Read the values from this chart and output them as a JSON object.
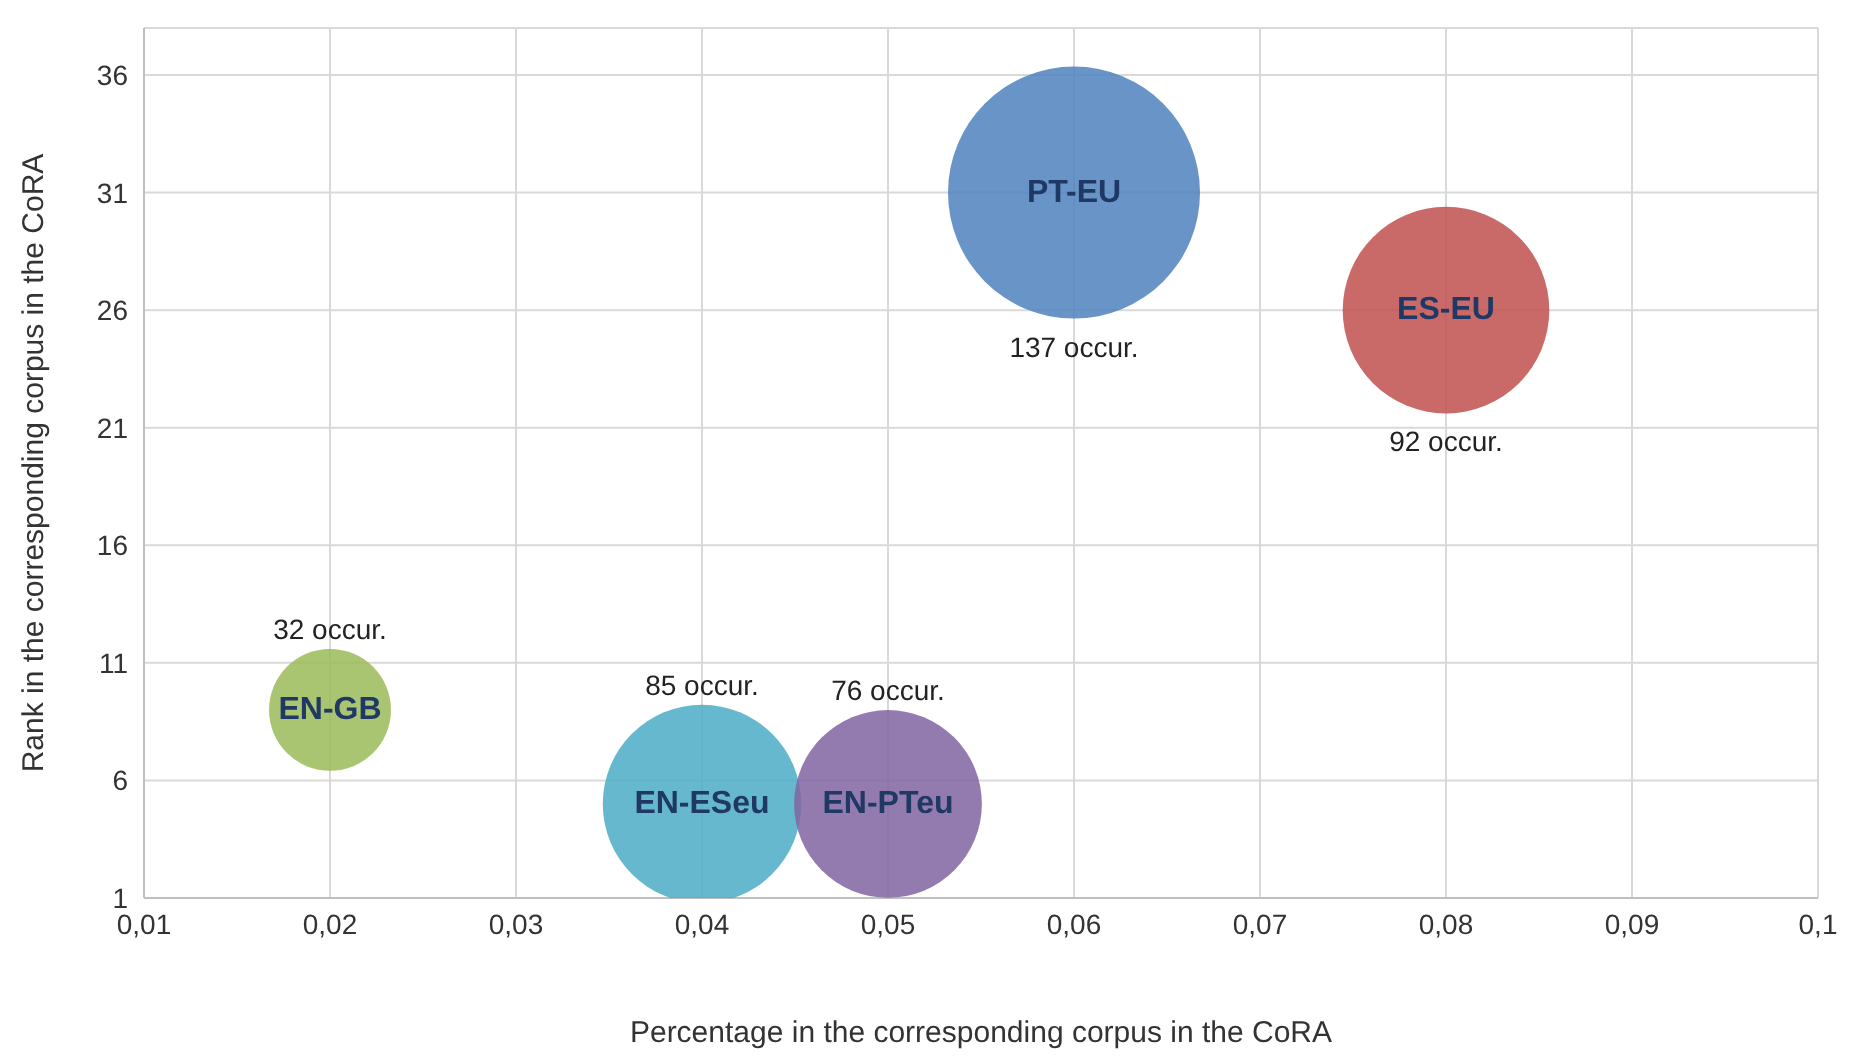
{
  "chart_data": {
    "type": "bubble",
    "xlabel": "Percentage in the corresponding corpus in the CoRA",
    "ylabel": "Rank in the corresponding corpus in the CoRA",
    "xlim": [
      0.01,
      0.1
    ],
    "xticks": [
      {
        "value": 0.01,
        "label": "0,01"
      },
      {
        "value": 0.02,
        "label": "0,02"
      },
      {
        "value": 0.03,
        "label": "0,03"
      },
      {
        "value": 0.04,
        "label": "0,04"
      },
      {
        "value": 0.05,
        "label": "0,05"
      },
      {
        "value": 0.06,
        "label": "0,06"
      },
      {
        "value": 0.07,
        "label": "0,07"
      },
      {
        "value": 0.08,
        "label": "0,08"
      },
      {
        "value": 0.09,
        "label": "0,09"
      },
      {
        "value": 0.1,
        "label": "0,1"
      }
    ],
    "annotations": [
      "32 occur.",
      "85 occur.",
      "76 occur.",
      "137 occur.",
      "92 occur."
    ],
    "ylim": [
      1,
      38
    ],
    "yticks": [
      1,
      6,
      11,
      16,
      21,
      26,
      31,
      36
    ],
    "grid": true,
    "legend": false,
    "series": [
      {
        "name": "EN-GB",
        "color": "#9bbb59",
        "x": [
          0.02
        ],
        "values": [
          9
        ],
        "sizes": [
          0.234
        ]
      },
      {
        "name": "EN-ESeu",
        "color": "#4bacc6",
        "x": [
          0.04
        ],
        "values": [
          5
        ],
        "sizes": [
          0.62
        ]
      },
      {
        "name": "EN-PTeu",
        "color": "#8064a2",
        "x": [
          0.05
        ],
        "values": [
          5
        ],
        "sizes": [
          0.555
        ]
      },
      {
        "name": "PT-EU",
        "color": "#4f81bd",
        "x": [
          0.06
        ],
        "values": [
          31
        ],
        "sizes": [
          1
        ]
      },
      {
        "name": "ES-EU",
        "color": "#c0504d",
        "x": [
          0.08
        ],
        "values": [
          26
        ],
        "sizes": [
          0.672
        ]
      }
    ]
  }
}
